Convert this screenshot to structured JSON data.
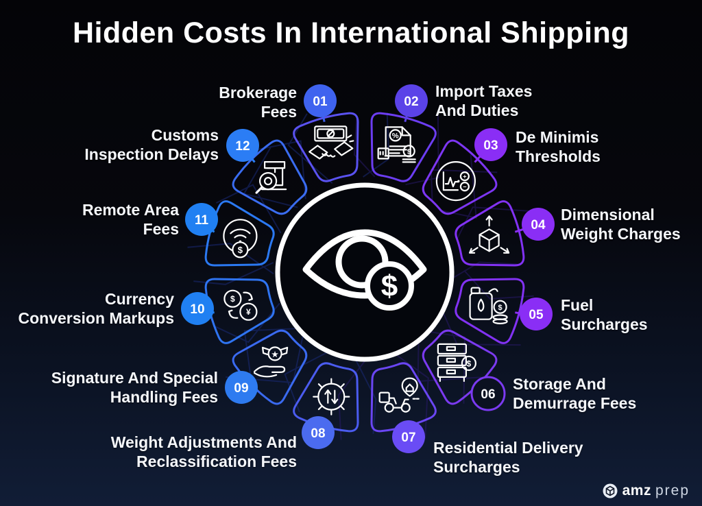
{
  "title": "Hidden Costs In International Shipping",
  "center": {
    "icon": "eye-dollar-icon",
    "coin_symbol": "$"
  },
  "brand": {
    "icon": "cube-icon",
    "name_bold": "amz",
    "name_light": "prep"
  },
  "colors": {
    "background_top": "#040407",
    "background_bottom": "#111d36",
    "text": "#f5f7fb",
    "center_ring": "#ffffff",
    "mesh_blue": "#1b2c7e",
    "mesh_purple": "#2a1a6e"
  },
  "items": [
    {
      "number": "01",
      "label": "Brokerage Fees",
      "lines": [
        "Brokerage",
        "Fees"
      ],
      "icon": "handshake-banknote-icon",
      "badge_color": "#3F63EF",
      "badge_style": "filled",
      "petal_color": "#5A52F0"
    },
    {
      "number": "02",
      "label": "Import Taxes And Duties",
      "lines": [
        "Import Taxes",
        "And Duties"
      ],
      "icon": "tax-document-icon",
      "badge_color": "#5B43E8",
      "badge_style": "filled",
      "petal_color": "#6C3DF2"
    },
    {
      "number": "03",
      "label": "De Minimis Thresholds",
      "lines": [
        "De Minimis",
        "Thresholds"
      ],
      "icon": "threshold-monitor-icon",
      "badge_color": "#8A2EF5",
      "badge_style": "filled",
      "petal_color": "#7D36F3"
    },
    {
      "number": "04",
      "label": "Dimensional Weight Charges",
      "lines": [
        "Dimensional",
        "Weight Charges"
      ],
      "icon": "cube-dimensions-icon",
      "badge_color": "#8A2EF5",
      "badge_style": "filled",
      "petal_color": "#8232F4"
    },
    {
      "number": "05",
      "label": "Fuel Surcharges",
      "lines": [
        "Fuel",
        "Surcharges"
      ],
      "icon": "fuel-can-icon",
      "badge_color": "#8A2EF5",
      "badge_style": "filled",
      "petal_color": "#8232F4"
    },
    {
      "number": "06",
      "label": "Storage And Demurrage Fees",
      "lines": [
        "Storage And",
        "Demurrage Fees"
      ],
      "icon": "storage-shelves-icon",
      "badge_color": "#7B3AF0",
      "badge_style": "outline",
      "petal_color": "#7B3AF0"
    },
    {
      "number": "07",
      "label": "Residential Delivery Surcharges",
      "lines": [
        "Residential Delivery",
        "Surcharges"
      ],
      "icon": "delivery-scooter-icon",
      "badge_color": "#6A4CF5",
      "badge_style": "filled",
      "petal_color": "#6A46F3"
    },
    {
      "number": "08",
      "label": "Weight Adjustments And Reclassification Fees",
      "lines": [
        "Weight Adjustments And",
        "Reclassification Fees"
      ],
      "icon": "gear-arrows-icon",
      "badge_color": "#4B6BEF",
      "badge_style": "filled",
      "petal_color": "#4B5CF0"
    },
    {
      "number": "09",
      "label": "Signature And Special Handling Fees",
      "lines": [
        "Signature And Special",
        "Handling Fees"
      ],
      "icon": "hand-badge-icon",
      "badge_color": "#2E7BF0",
      "badge_style": "filled",
      "petal_color": "#3A6AF0"
    },
    {
      "number": "10",
      "label": "Currency Conversion Markups",
      "lines": [
        "Currency",
        "Conversion Markups"
      ],
      "icon": "currency-exchange-icon",
      "badge_color": "#2080F2",
      "badge_style": "filled",
      "petal_color": "#2F74F1"
    },
    {
      "number": "11",
      "label": "Remote Area Fees",
      "lines": [
        "Remote Area",
        "Fees"
      ],
      "icon": "wifi-dollar-icon",
      "badge_color": "#2080F2",
      "badge_style": "filled",
      "petal_color": "#2B79F2"
    },
    {
      "number": "12",
      "label": "Customs Inspection Delays",
      "lines": [
        "Customs",
        "Inspection Delays"
      ],
      "icon": "box-magnifier-icon",
      "badge_color": "#2B7DF5",
      "badge_style": "filled",
      "petal_color": "#3A6CF0"
    }
  ]
}
